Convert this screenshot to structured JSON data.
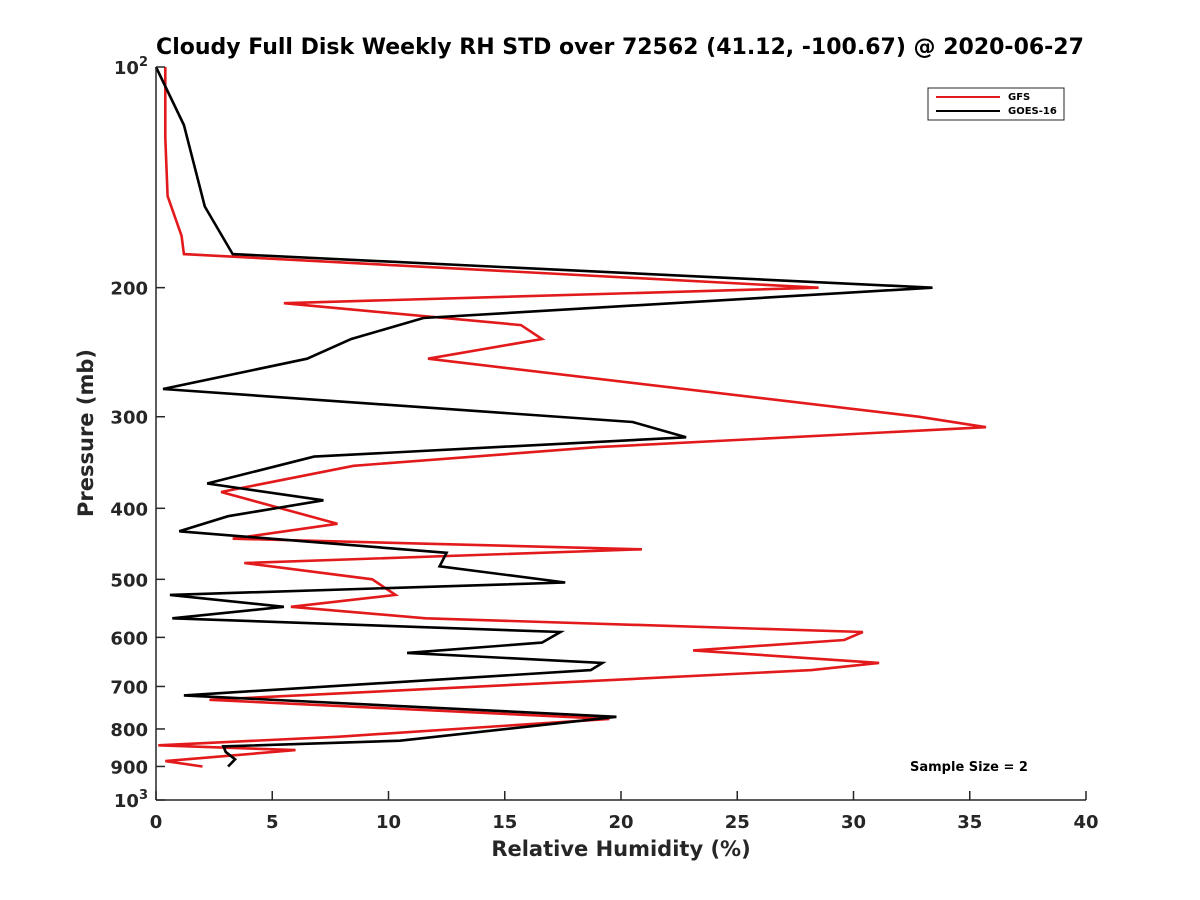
{
  "chart_data": {
    "type": "line",
    "title": "Cloudy Full Disk Weekly RH STD over 72562 (41.12, -100.67) @ 2020-06-27",
    "xlabel": "Relative Humidity (%)",
    "ylabel": "Pressure (mb)",
    "xlim": [
      0,
      40
    ],
    "ylim": [
      100,
      1000
    ],
    "y_scale": "log",
    "y_reversed": true,
    "x_ticks": [
      "0",
      "5",
      "10",
      "15",
      "20",
      "25",
      "30",
      "35",
      "40"
    ],
    "y_ticks": [
      {
        "value": 100,
        "base": "10",
        "exp": "2"
      },
      {
        "value": 200,
        "label": "200"
      },
      {
        "value": 300,
        "label": "300"
      },
      {
        "value": 400,
        "label": "400"
      },
      {
        "value": 500,
        "label": "500"
      },
      {
        "value": 600,
        "label": "600"
      },
      {
        "value": 700,
        "label": "700"
      },
      {
        "value": 800,
        "label": "800"
      },
      {
        "value": 900,
        "label": "900"
      },
      {
        "value": 1000,
        "base": "10",
        "exp": "3"
      }
    ],
    "legend_position": "top-right",
    "grid": false,
    "series": [
      {
        "name": "GFS",
        "color": "#e31a1c",
        "points": [
          [
            0.4,
            100
          ],
          [
            0.4,
            125
          ],
          [
            0.5,
            150
          ],
          [
            1.1,
            170
          ],
          [
            1.2,
            180
          ],
          [
            28.5,
            200
          ],
          [
            5.5,
            210
          ],
          [
            15.7,
            225
          ],
          [
            16.6,
            235
          ],
          [
            11.7,
            250
          ],
          [
            32.8,
            300
          ],
          [
            35.7,
            310
          ],
          [
            19.0,
            330
          ],
          [
            8.5,
            350
          ],
          [
            2.8,
            380
          ],
          [
            7.8,
            420
          ],
          [
            3.3,
            440
          ],
          [
            20.9,
            455
          ],
          [
            3.8,
            475
          ],
          [
            9.3,
            500
          ],
          [
            10.3,
            525
          ],
          [
            5.8,
            545
          ],
          [
            11.6,
            565
          ],
          [
            30.4,
            590
          ],
          [
            29.6,
            605
          ],
          [
            23.1,
            625
          ],
          [
            31.1,
            650
          ],
          [
            28.2,
            665
          ],
          [
            2.3,
            730
          ],
          [
            19.5,
            775
          ],
          [
            7.8,
            820
          ],
          [
            0.1,
            842
          ],
          [
            6.0,
            855
          ],
          [
            0.4,
            885
          ],
          [
            2.0,
            900
          ]
        ]
      },
      {
        "name": "GOES-16",
        "color": "#000000",
        "points": [
          [
            0.0,
            100
          ],
          [
            1.2,
            120
          ],
          [
            2.1,
            155
          ],
          [
            3.3,
            180
          ],
          [
            33.4,
            200
          ],
          [
            11.5,
            220
          ],
          [
            8.4,
            235
          ],
          [
            6.5,
            250
          ],
          [
            0.3,
            275
          ],
          [
            20.5,
            305
          ],
          [
            22.8,
            320
          ],
          [
            6.8,
            340
          ],
          [
            2.2,
            370
          ],
          [
            7.2,
            390
          ],
          [
            3.1,
            410
          ],
          [
            1.0,
            430
          ],
          [
            12.5,
            460
          ],
          [
            12.2,
            480
          ],
          [
            17.6,
            505
          ],
          [
            0.6,
            525
          ],
          [
            5.5,
            545
          ],
          [
            0.7,
            565
          ],
          [
            17.4,
            590
          ],
          [
            16.6,
            610
          ],
          [
            10.8,
            630
          ],
          [
            19.2,
            650
          ],
          [
            18.7,
            665
          ],
          [
            1.2,
            720
          ],
          [
            19.8,
            770
          ],
          [
            10.5,
            830
          ],
          [
            2.9,
            845
          ],
          [
            3.0,
            860
          ],
          [
            3.4,
            880
          ],
          [
            3.1,
            900
          ]
        ]
      }
    ],
    "annotations": [
      "Sample Size = 2"
    ]
  }
}
